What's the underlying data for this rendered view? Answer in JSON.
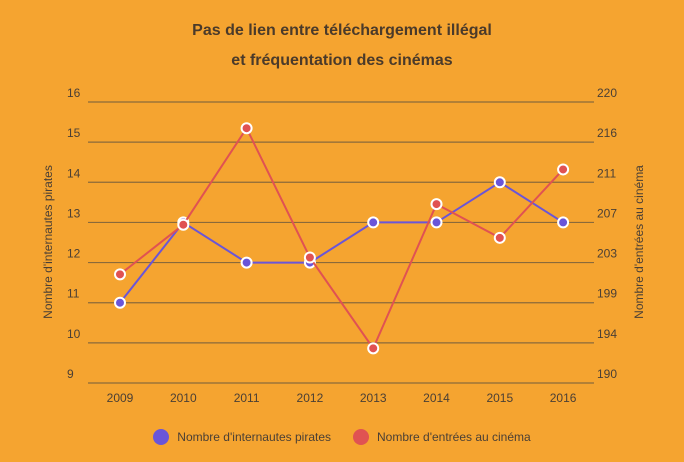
{
  "chart_data": {
    "type": "line",
    "title_line1": "Pas de lien entre téléchargement illégal",
    "title_line2": "et fréquentation des cinémas",
    "categories": [
      "2009",
      "2010",
      "2011",
      "2012",
      "2013",
      "2014",
      "2015",
      "2016"
    ],
    "ylabel_left": "Nombre d'internautes pirates",
    "ylabel_right": "Nombre d'entrées au cinéma",
    "ylim_left": [
      9,
      16
    ],
    "ylim_right": [
      190,
      220
    ],
    "yticks_left": [
      "9",
      "10",
      "11",
      "12",
      "13",
      "14",
      "15",
      "16"
    ],
    "yticks_right": [
      "190",
      "194",
      "199",
      "203",
      "207",
      "211",
      "216",
      "220"
    ],
    "grid": true,
    "legend_position": "bottom",
    "series": [
      {
        "name": "Nombre d'internautes pirates",
        "axis": "left",
        "color": "#6a55d8",
        "values": [
          11,
          13,
          12,
          12,
          13,
          13,
          14,
          13
        ]
      },
      {
        "name": "Nombre d'entrées au cinéma",
        "axis": "right",
        "color": "#e05252",
        "values": [
          201.6,
          206.9,
          217.2,
          203.4,
          193.7,
          209.1,
          205.5,
          212.8
        ]
      }
    ]
  }
}
